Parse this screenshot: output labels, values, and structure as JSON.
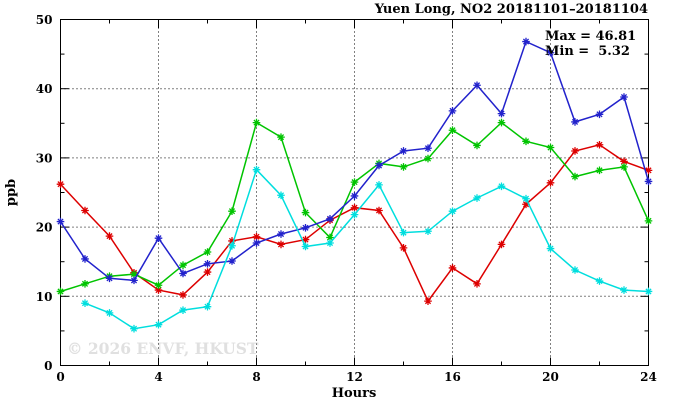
{
  "title": "Yuen Long, NO2 20181101–20181104",
  "annotations": {
    "max_label": "Max = 46.81",
    "min_label": "Min =  5.32"
  },
  "watermark": "© 2026 ENVF, HKUST",
  "chart_data": {
    "type": "line",
    "title": "Yuen Long, NO2 20181101–20181104",
    "xlabel": "Hours",
    "ylabel": "ppb",
    "xlim": [
      0,
      24
    ],
    "ylim": [
      0,
      50
    ],
    "x_major_ticks": [
      0,
      4,
      8,
      12,
      16,
      20,
      24
    ],
    "x_minor_ticks": [
      2,
      6,
      10,
      14,
      18,
      22
    ],
    "y_major_ticks": [
      0,
      10,
      20,
      30,
      40,
      50
    ],
    "y_minor_ticks": [
      5,
      15,
      25,
      35,
      45
    ],
    "grid": true,
    "grid_style": "dotted",
    "legend_position": "none",
    "marker": "asterisk",
    "max_value": 46.81,
    "min_value": 5.32,
    "x": [
      0,
      1,
      2,
      3,
      4,
      5,
      6,
      7,
      8,
      9,
      10,
      11,
      12,
      13,
      14,
      15,
      16,
      17,
      18,
      19,
      20,
      21,
      22,
      23,
      24
    ],
    "series": [
      {
        "name": "red",
        "color": "#dd0000",
        "values": [
          26.2,
          22.4,
          18.7,
          13.4,
          10.9,
          10.2,
          13.5,
          18.0,
          18.6,
          17.5,
          18.2,
          21.0,
          22.8,
          22.4,
          17.0,
          9.3,
          14.1,
          11.8,
          17.5,
          23.3,
          26.4,
          31.0,
          31.9,
          29.5,
          28.2
        ]
      },
      {
        "name": "green",
        "color": "#00c400",
        "values": [
          10.7,
          11.8,
          12.9,
          13.2,
          11.6,
          14.5,
          16.4,
          22.3,
          35.1,
          33.0,
          22.1,
          18.5,
          26.5,
          29.2,
          28.7,
          29.9,
          34.0,
          31.8,
          35.1,
          32.4,
          31.5,
          27.3,
          28.2,
          28.7,
          20.9
        ]
      },
      {
        "name": "blue",
        "color": "#2222cc",
        "values": [
          20.8,
          15.4,
          12.6,
          12.3,
          18.4,
          13.3,
          14.7,
          15.1,
          17.7,
          19.0,
          19.9,
          21.2,
          24.5,
          28.9,
          31.0,
          31.4,
          36.8,
          40.5,
          36.4,
          46.81,
          45.2,
          35.2,
          36.3,
          38.8,
          26.6
        ]
      },
      {
        "name": "cyan",
        "color": "#00dede",
        "values": [
          null,
          9.0,
          7.6,
          5.32,
          5.9,
          8.0,
          8.5,
          17.3,
          28.3,
          24.6,
          17.2,
          17.7,
          21.8,
          26.1,
          19.2,
          19.4,
          22.3,
          24.2,
          25.9,
          24.1,
          16.9,
          13.8,
          12.2,
          10.9,
          10.7
        ]
      }
    ]
  }
}
